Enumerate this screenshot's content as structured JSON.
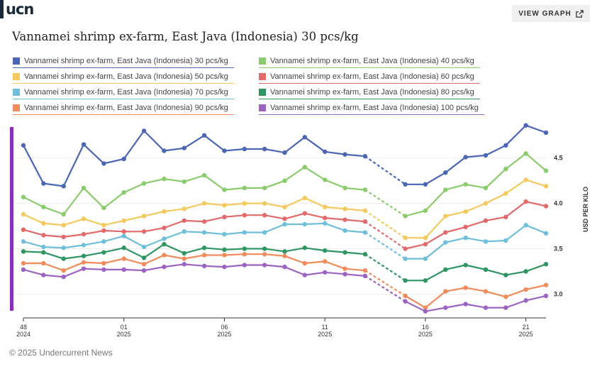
{
  "logo": {
    "text": "ucn"
  },
  "toolbar": {
    "view_graph_label": "VIEW GRAPH",
    "view_graph_icon": "external-link-icon"
  },
  "footer": {
    "copyright": "© 2025 Undercurrent News"
  },
  "chart_data": {
    "type": "line",
    "title": "Vannamei shrimp ex-farm, East Java (Indonesia) 30 pcs/kg",
    "ylabel": "USD PER KILO",
    "ylim": [
      2.8,
      4.85
    ],
    "yticks": [
      3.0,
      3.5,
      4.0,
      4.5
    ],
    "ytick_labels": [
      "3.0",
      "3.5",
      "4.0",
      "4.5"
    ],
    "grid": true,
    "legend_position": "top",
    "x_index_range": [
      0,
      27
    ],
    "xtick_index": [
      0,
      5,
      10,
      15,
      20,
      25
    ],
    "xtick_labels": [
      [
        "48",
        "2024"
      ],
      [
        "01",
        "2025"
      ],
      [
        "06",
        "2025"
      ],
      [
        "11",
        "2025"
      ],
      [
        "16",
        "2025"
      ],
      [
        "21",
        "2025"
      ]
    ],
    "x_weeks": [
      "2024-W48",
      "2024-W49",
      "2024-W50",
      "2024-W51",
      "2024-W52",
      "2025-W01",
      "2025-W02",
      "2025-W03",
      "2025-W04",
      "2025-W05",
      "2025-W06",
      "2025-W07",
      "2025-W08",
      "2025-W09",
      "2025-W10",
      "2025-W11",
      "2025-W12",
      "2025-W13",
      "2025-W14",
      "2025-W15",
      "2025-W16",
      "2025-W17",
      "2025-W18",
      "2025-W19",
      "2025-W20",
      "2025-W21",
      "2025-W22"
    ],
    "gap_after_index": 17,
    "gap_before_index": 19,
    "series": [
      {
        "name": "Vannamei shrimp ex-farm, East Java (Indonesia) 30 pcs/kg",
        "color": "#4a66b5",
        "values": [
          4.64,
          4.22,
          4.19,
          4.65,
          4.44,
          4.49,
          4.8,
          4.58,
          4.61,
          4.75,
          4.58,
          4.6,
          4.6,
          4.56,
          4.73,
          4.57,
          4.54,
          4.52,
          null,
          4.21,
          4.21,
          4.34,
          4.51,
          4.53,
          4.64,
          4.86,
          4.78
        ]
      },
      {
        "name": "Vannamei shrimp ex-farm, East Java (Indonesia) 40 pcs/kg",
        "color": "#8acc6c",
        "values": [
          4.07,
          3.96,
          3.88,
          4.17,
          3.95,
          4.12,
          4.22,
          4.27,
          4.24,
          4.31,
          4.15,
          4.17,
          4.17,
          4.25,
          4.4,
          4.26,
          4.17,
          4.15,
          null,
          3.86,
          3.92,
          4.15,
          4.21,
          4.17,
          4.38,
          4.55,
          4.36
        ]
      },
      {
        "name": "Vannamei shrimp ex-farm, East Java (Indonesia) 50 pcs/kg",
        "color": "#f4c95d",
        "values": [
          3.88,
          3.78,
          3.76,
          3.83,
          3.76,
          3.81,
          3.86,
          3.91,
          3.94,
          4.0,
          3.98,
          4.0,
          4.0,
          3.96,
          4.06,
          3.96,
          3.94,
          3.92,
          null,
          3.62,
          3.62,
          3.86,
          3.91,
          4.0,
          4.11,
          4.26,
          4.19
        ]
      },
      {
        "name": "Vannamei shrimp ex-farm, East Java (Indonesia) 60 pcs/kg",
        "color": "#e26a6a",
        "values": [
          3.71,
          3.65,
          3.63,
          3.66,
          3.7,
          3.69,
          3.69,
          3.73,
          3.81,
          3.8,
          3.85,
          3.87,
          3.87,
          3.83,
          3.89,
          3.84,
          3.82,
          3.8,
          null,
          3.5,
          3.55,
          3.68,
          3.74,
          3.81,
          3.85,
          4.02,
          3.97
        ]
      },
      {
        "name": "Vannamei shrimp ex-farm, East Java (Indonesia) 70 pcs/kg",
        "color": "#6fbfda",
        "values": [
          3.58,
          3.52,
          3.51,
          3.54,
          3.58,
          3.64,
          3.52,
          3.61,
          3.69,
          3.68,
          3.66,
          3.68,
          3.68,
          3.77,
          3.77,
          3.78,
          3.7,
          3.68,
          null,
          3.39,
          3.39,
          3.57,
          3.62,
          3.58,
          3.59,
          3.76,
          3.67
        ]
      },
      {
        "name": "Vannamei shrimp ex-farm, East Java (Indonesia) 80 pcs/kg",
        "color": "#2f9663",
        "values": [
          3.47,
          3.46,
          3.39,
          3.42,
          3.46,
          3.51,
          3.4,
          3.55,
          3.45,
          3.51,
          3.49,
          3.5,
          3.5,
          3.47,
          3.51,
          3.48,
          3.46,
          3.44,
          null,
          3.15,
          3.15,
          3.27,
          3.32,
          3.27,
          3.21,
          3.25,
          3.33
        ]
      },
      {
        "name": "Vannamei shrimp ex-farm, East Java (Indonesia) 90 pcs/kg",
        "color": "#f08c5a",
        "values": [
          3.34,
          3.34,
          3.26,
          3.35,
          3.34,
          3.39,
          3.33,
          3.43,
          3.39,
          3.43,
          3.43,
          3.44,
          3.44,
          3.42,
          3.34,
          3.36,
          3.28,
          3.26,
          null,
          2.98,
          2.85,
          3.03,
          3.07,
          3.03,
          2.97,
          3.05,
          3.1
        ]
      },
      {
        "name": "Vannamei shrimp ex-farm, East Java (Indonesia) 100 pcs/kg",
        "color": "#9b63c2",
        "values": [
          3.27,
          3.21,
          3.19,
          3.28,
          3.27,
          3.27,
          3.26,
          3.3,
          3.33,
          3.31,
          3.3,
          3.32,
          3.32,
          3.3,
          3.21,
          3.24,
          3.22,
          3.2,
          null,
          2.92,
          2.81,
          2.85,
          2.89,
          2.85,
          2.85,
          2.93,
          2.98
        ]
      }
    ]
  }
}
